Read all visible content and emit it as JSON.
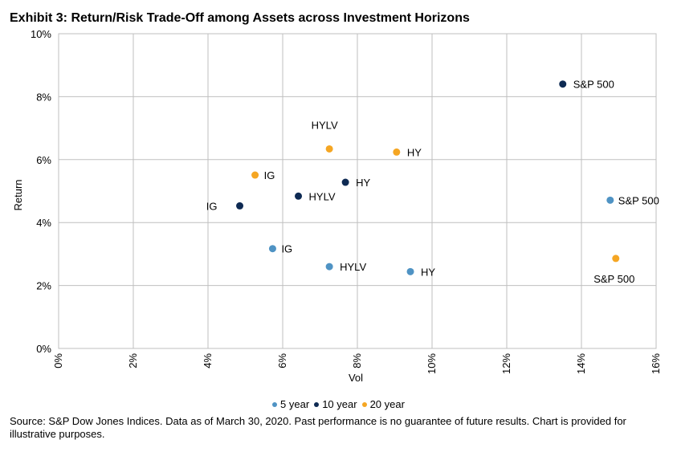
{
  "chart_data": {
    "type": "scatter",
    "title": "Exhibit 3: Return/Risk Trade-Off among Assets across Investment Horizons",
    "xlabel": "Vol",
    "ylabel": "Return",
    "xlim": [
      0,
      16
    ],
    "ylim": [
      0,
      10
    ],
    "x_ticks": [
      "0%",
      "2%",
      "4%",
      "6%",
      "8%",
      "10%",
      "12%",
      "14%",
      "16%"
    ],
    "y_ticks": [
      "0%",
      "2%",
      "4%",
      "6%",
      "8%",
      "10%"
    ],
    "grid": true,
    "legend_position": "bottom",
    "series": [
      {
        "name": "5 year",
        "color": "#4f93c4",
        "points": [
          {
            "label": "IG",
            "x": 5.73,
            "y": 3.17
          },
          {
            "label": "HYLV",
            "x": 7.25,
            "y": 2.6
          },
          {
            "label": "HY",
            "x": 9.42,
            "y": 2.44
          },
          {
            "label": "S&P 500",
            "x": 14.77,
            "y": 4.71
          }
        ]
      },
      {
        "name": "10 year",
        "color": "#0e2a53",
        "points": [
          {
            "label": "IG",
            "x": 4.85,
            "y": 4.53
          },
          {
            "label": "HYLV",
            "x": 6.42,
            "y": 4.84
          },
          {
            "label": "HY",
            "x": 7.68,
            "y": 5.28
          },
          {
            "label": "S&P 500",
            "x": 13.5,
            "y": 8.4
          }
        ]
      },
      {
        "name": "20 year",
        "color": "#f5a623",
        "points": [
          {
            "label": "IG",
            "x": 5.26,
            "y": 5.51
          },
          {
            "label": "HYLV",
            "x": 7.25,
            "y": 6.34
          },
          {
            "label": "HY",
            "x": 9.05,
            "y": 6.24
          },
          {
            "label": "S&P 500",
            "x": 14.92,
            "y": 2.86
          }
        ]
      }
    ]
  },
  "footer": {
    "source": "Source: S&P Dow Jones Indices. Data as of March 30, 2020. Past performance is no guarantee of future results. Chart is provided for illustrative purposes."
  }
}
